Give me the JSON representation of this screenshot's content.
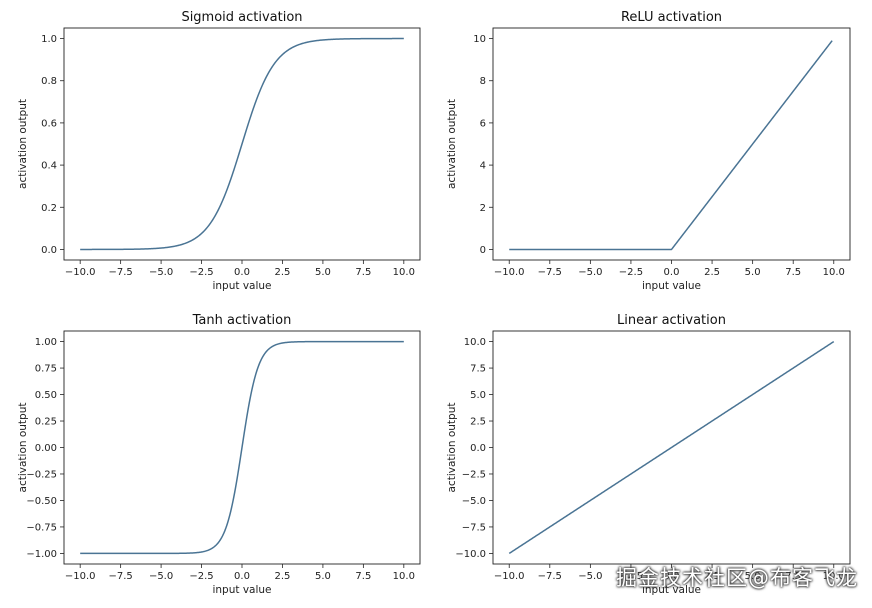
{
  "colors": {
    "line": "#4a7494"
  },
  "watermark": "掘金技术社区@布客飞龙",
  "chart_data": [
    {
      "type": "line",
      "function": "sigmoid",
      "title": "Sigmoid activation",
      "xlabel": "input value",
      "ylabel": "activation output",
      "xlim": [
        -11,
        11
      ],
      "ylim": [
        -0.05,
        1.05
      ],
      "xticks": [
        -10.0,
        -7.5,
        -5.0,
        -2.5,
        0.0,
        2.5,
        5.0,
        7.5,
        10.0
      ],
      "xtick_labels": [
        "−10.0",
        "−7.5",
        "−5.0",
        "−2.5",
        "0.0",
        "2.5",
        "5.0",
        "7.5",
        "10.0"
      ],
      "yticks": [
        0.0,
        0.2,
        0.4,
        0.6,
        0.8,
        1.0
      ],
      "ytick_labels": [
        "0.0",
        "0.2",
        "0.4",
        "0.6",
        "0.8",
        "1.0"
      ],
      "x_range": [
        -10,
        10
      ],
      "grid": false
    },
    {
      "type": "line",
      "function": "relu",
      "title": "ReLU activation",
      "xlabel": "input value",
      "ylabel": "activation output",
      "xlim": [
        -11,
        11
      ],
      "ylim": [
        -0.5,
        10.5
      ],
      "xticks": [
        -10.0,
        -7.5,
        -5.0,
        -2.5,
        0.0,
        2.5,
        5.0,
        7.5,
        10.0
      ],
      "xtick_labels": [
        "−10.0",
        "−7.5",
        "−5.0",
        "−2.5",
        "0.0",
        "2.5",
        "5.0",
        "7.5",
        "10.0"
      ],
      "yticks": [
        0,
        2,
        4,
        6,
        8,
        10
      ],
      "ytick_labels": [
        "0",
        "2",
        "4",
        "6",
        "8",
        "10"
      ],
      "x_range": [
        -10,
        9.9
      ],
      "grid": false
    },
    {
      "type": "line",
      "function": "tanh",
      "title": "Tanh activation",
      "xlabel": "input value",
      "ylabel": "activation output",
      "xlim": [
        -11,
        11
      ],
      "ylim": [
        -1.1,
        1.1
      ],
      "xticks": [
        -10.0,
        -7.5,
        -5.0,
        -2.5,
        0.0,
        2.5,
        5.0,
        7.5,
        10.0
      ],
      "xtick_labels": [
        "−10.0",
        "−7.5",
        "−5.0",
        "−2.5",
        "0.0",
        "2.5",
        "5.0",
        "7.5",
        "10.0"
      ],
      "yticks": [
        -1.0,
        -0.75,
        -0.5,
        -0.25,
        0.0,
        0.25,
        0.5,
        0.75,
        1.0
      ],
      "ytick_labels": [
        "−1.00",
        "−0.75",
        "−0.50",
        "−0.25",
        "0.00",
        "0.25",
        "0.50",
        "0.75",
        "1.00"
      ],
      "x_range": [
        -10,
        10
      ],
      "grid": false
    },
    {
      "type": "line",
      "function": "linear",
      "title": "Linear activation",
      "xlabel": "input value",
      "ylabel": "activation output",
      "xlim": [
        -11,
        11
      ],
      "ylim": [
        -11,
        11
      ],
      "xticks": [
        -10.0,
        -7.5,
        -5.0,
        -2.5,
        0.0,
        2.5,
        5.0,
        7.5,
        10.0
      ],
      "xtick_labels": [
        "−10.0",
        "−7.5",
        "−5.0",
        "−2.5",
        "0.0",
        "2.5",
        "5.0",
        "7.5",
        "10.0"
      ],
      "yticks": [
        -10.0,
        -7.5,
        -5.0,
        -2.5,
        0.0,
        2.5,
        5.0,
        7.5,
        10.0
      ],
      "ytick_labels": [
        "−10.0",
        "−7.5",
        "−5.0",
        "−2.5",
        "0.0",
        "2.5",
        "5.0",
        "7.5",
        "10.0"
      ],
      "x_range": [
        -10,
        10
      ],
      "grid": false
    }
  ]
}
